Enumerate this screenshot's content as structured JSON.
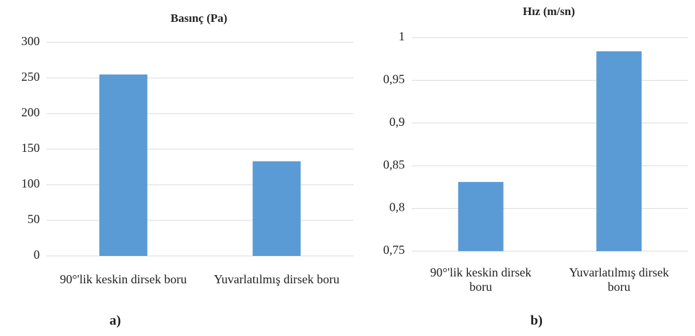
{
  "chart_data": [
    {
      "type": "bar",
      "title": "Basınç (Pa)",
      "panel_label": "a)",
      "categories": [
        "90°'lik keskin dirsek boru",
        "Yuvarlatılmış dirsek boru"
      ],
      "values": [
        255,
        133
      ],
      "color": "#5b9bd5",
      "ylim": [
        0,
        300
      ],
      "yticks": [
        0,
        50,
        100,
        150,
        200,
        250,
        300
      ],
      "grid": true
    },
    {
      "type": "bar",
      "title": "Hız (m/sn)",
      "panel_label": "b)",
      "categories": [
        "90°'lik keskin dirsek boru",
        "Yuvarlatılmış dirsek boru"
      ],
      "values": [
        0.831,
        0.984
      ],
      "color": "#5b9bd5",
      "ylim": [
        0.75,
        1
      ],
      "yticks": [
        {
          "value": 0.75,
          "label": "0,75"
        },
        {
          "value": 0.8,
          "label": "0,8"
        },
        {
          "value": 0.85,
          "label": "0,85"
        },
        {
          "value": 0.9,
          "label": "0,9"
        },
        {
          "value": 0.95,
          "label": "0,95"
        },
        1
      ],
      "grid": true
    }
  ]
}
